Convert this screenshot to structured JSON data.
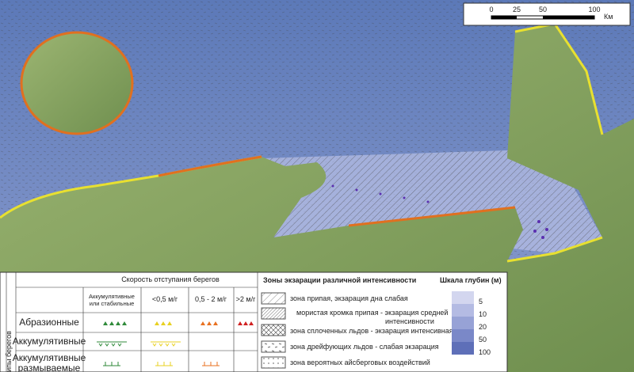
{
  "scale_bar": {
    "ticks": [
      "0",
      "25",
      "50",
      "100"
    ],
    "unit": "Км"
  },
  "legend": {
    "side_label": "Типы берегов",
    "title": "Скорость отступания берегов",
    "columns": [
      [
        "Аккумулятивные",
        "или стабильные"
      ],
      "<0,5 м/г",
      "0,5 - 2 м/г",
      ">2 м/г"
    ],
    "rows": [
      [
        "Абразионные"
      ],
      [
        "Аккумулятивные"
      ],
      [
        "Аккумулятивные",
        "размываемые"
      ]
    ]
  },
  "zones": {
    "title": "Зоны экзарации различной интенсивности",
    "items": [
      [
        "зона припая, экзарация дна слабая"
      ],
      [
        "мористая кромка припая - экзарация средней",
        "интенсивности"
      ],
      [
        "зона сплоченных льдов - экзарация интенсивная"
      ],
      [
        "зона дрейфующих льдов - слабая экзарация"
      ],
      [
        "зона вероятных айсберговых воздействий"
      ]
    ]
  },
  "depth_scale": {
    "title": "Шкала глубин (м)",
    "levels": [
      5,
      10,
      20,
      50,
      100
    ]
  }
}
